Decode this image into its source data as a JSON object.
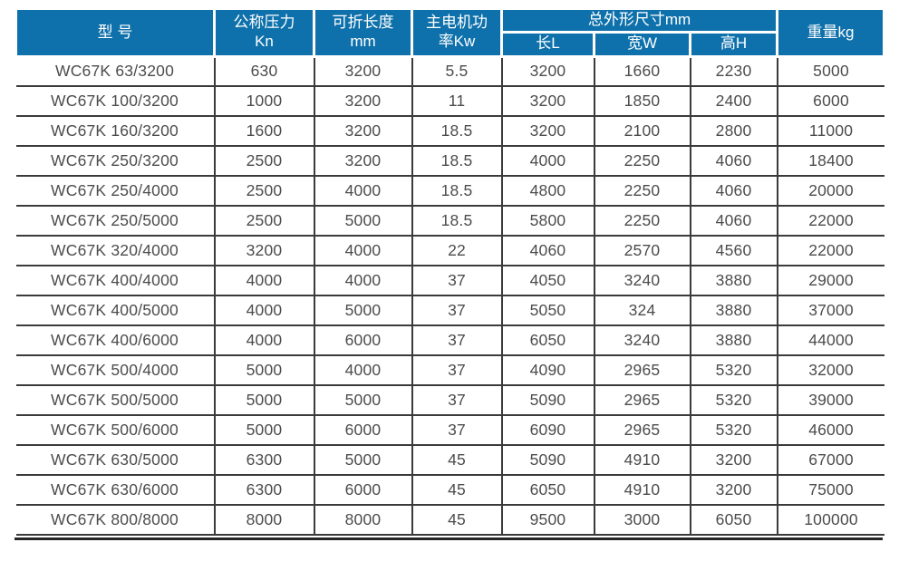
{
  "table": {
    "headers": {
      "model": "型 号",
      "pressure_line1": "公称压力",
      "pressure_line2": "Kn",
      "fold_length_line1": "可折长度",
      "fold_length_line2": "mm",
      "motor_power_line1": "主电机功",
      "motor_power_line2": "率Kw",
      "overall_dims": "总外形尺寸mm",
      "length": "长L",
      "width": "宽W",
      "height": "高H",
      "weight": "重量kg"
    },
    "column_keys": [
      "model",
      "pressure_kn",
      "fold_length_mm",
      "motor_power_kw",
      "length_l",
      "width_w",
      "height_h",
      "weight_kg"
    ],
    "rows": [
      [
        "WC67K 63/3200",
        "630",
        "3200",
        "5.5",
        "3200",
        "1660",
        "2230",
        "5000"
      ],
      [
        "WC67K 100/3200",
        "1000",
        "3200",
        "11",
        "3200",
        "1850",
        "2400",
        "6000"
      ],
      [
        "WC67K 160/3200",
        "1600",
        "3200",
        "18.5",
        "3200",
        "2100",
        "2800",
        "11000"
      ],
      [
        "WC67K 250/3200",
        "2500",
        "3200",
        "18.5",
        "4000",
        "2250",
        "4060",
        "18400"
      ],
      [
        "WC67K 250/4000",
        "2500",
        "4000",
        "18.5",
        "4800",
        "2250",
        "4060",
        "20000"
      ],
      [
        "WC67K 250/5000",
        "2500",
        "5000",
        "18.5",
        "5800",
        "2250",
        "4060",
        "22000"
      ],
      [
        "WC67K 320/4000",
        "3200",
        "4000",
        "22",
        "4060",
        "2570",
        "4560",
        "22000"
      ],
      [
        "WC67K 400/4000",
        "4000",
        "4000",
        "37",
        "4050",
        "3240",
        "3880",
        "29000"
      ],
      [
        "WC67K 400/5000",
        "4000",
        "5000",
        "37",
        "5050",
        "324",
        "3880",
        "37000"
      ],
      [
        "WC67K 400/6000",
        "4000",
        "6000",
        "37",
        "6050",
        "3240",
        "3880",
        "44000"
      ],
      [
        "WC67K 500/4000",
        "5000",
        "4000",
        "37",
        "4090",
        "2965",
        "5320",
        "32000"
      ],
      [
        "WC67K 500/5000",
        "5000",
        "5000",
        "37",
        "5090",
        "2965",
        "5320",
        "39000"
      ],
      [
        "WC67K 500/6000",
        "5000",
        "6000",
        "37",
        "6090",
        "2965",
        "5320",
        "46000"
      ],
      [
        "WC67K 630/5000",
        "6300",
        "5000",
        "45",
        "5090",
        "4910",
        "3200",
        "67000"
      ],
      [
        "WC67K 630/6000",
        "6300",
        "6000",
        "45",
        "6050",
        "4910",
        "3200",
        "75000"
      ],
      [
        "WC67K 800/8000",
        "8000",
        "8000",
        "45",
        "9500",
        "3000",
        "6050",
        "100000"
      ]
    ]
  },
  "colors": {
    "header_bg": "#0f71ab",
    "header_text": "#ffffff",
    "body_text": "#4c4c4c",
    "grid_line": "#3b3b3b"
  }
}
